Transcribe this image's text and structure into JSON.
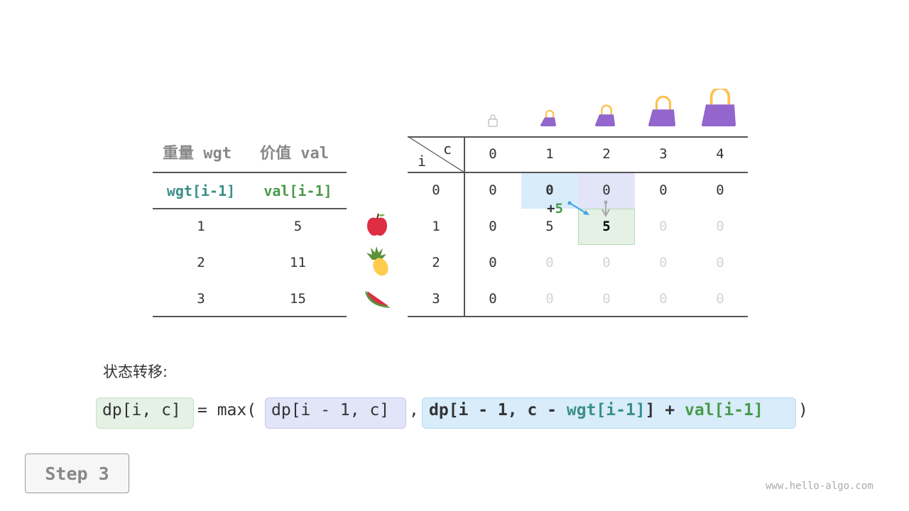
{
  "items_table": {
    "headers": [
      "重量 wgt",
      "价值 val"
    ],
    "subheaders": [
      "wgt[i-1]",
      "val[i-1]"
    ],
    "rows": [
      [
        "1",
        "5"
      ],
      [
        "2",
        "11"
      ],
      [
        "3",
        "15"
      ]
    ],
    "item_icons": [
      "apple-icon",
      "pineapple-icon",
      "watermelon-icon"
    ]
  },
  "dp_table": {
    "corner_row_label": "i",
    "corner_col_label": "c",
    "col_headers": [
      "0",
      "1",
      "2",
      "3",
      "4"
    ],
    "row_headers": [
      "0",
      "1",
      "2",
      "3"
    ],
    "cells": [
      [
        "0",
        "0",
        "0",
        "0",
        "0"
      ],
      [
        "0",
        "5",
        "5",
        "0",
        "0"
      ],
      [
        "0",
        "0",
        "0",
        "0",
        "0"
      ],
      [
        "0",
        "0",
        "0",
        "0",
        "0"
      ]
    ],
    "cell_styles": [
      [
        "n",
        "b",
        "n",
        "n",
        "n"
      ],
      [
        "n",
        "n",
        "b",
        "f",
        "f"
      ],
      [
        "n",
        "f",
        "f",
        "f",
        "f"
      ],
      [
        "n",
        "f",
        "f",
        "f",
        "f"
      ]
    ],
    "bag_icons": [
      "empty-bag-icon",
      "bag-icon",
      "bag-icon",
      "bag-icon",
      "bag-icon"
    ],
    "annotation": {
      "plus": "+",
      "value": "5"
    },
    "colors": {
      "blue": "#d8ecfa",
      "purple": "#e2e4f8",
      "green": "#e4f1e4"
    }
  },
  "formula": {
    "label": "状态转移:",
    "lhs": "dp[i, c]",
    "eq": "= max(",
    "a": "dp[i - 1, c]",
    "comma": ",",
    "b1": "dp[i - 1, c - ",
    "b_wgt": "wgt[i-1]",
    "b2": "] + ",
    "b_val": "val[i-1]",
    "close": ")"
  },
  "step_button": "Step 3",
  "watermark": "www.hello-algo.com"
}
